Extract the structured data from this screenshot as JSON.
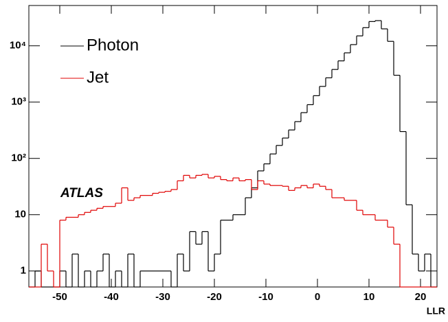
{
  "chart_data": {
    "type": "histogram",
    "annotation": "ATLAS",
    "x_label": "LLR",
    "bins": [
      -56,
      -54.8,
      -53.6,
      -52.4,
      -51.2,
      -50,
      -48.8,
      -47.6,
      -46.4,
      -45.2,
      -44,
      -42.8,
      -41.6,
      -40.4,
      -39.2,
      -38,
      -36.8,
      -35.6,
      -34.4,
      -33.2,
      -32,
      -30.8,
      -29.6,
      -28.4,
      -27.2,
      -26,
      -24.8,
      -23.6,
      -22.4,
      -21.2,
      -20,
      -18.8,
      -17.6,
      -16.4,
      -15.2,
      -14,
      -12.8,
      -11.6,
      -10.4,
      -9.2,
      -8,
      -6.8,
      -5.6,
      -4.4,
      -3.2,
      -2,
      -0.8,
      0.4,
      1.6,
      2.8,
      4,
      5.2,
      6.4,
      7.6,
      8.8,
      10,
      11.2,
      12.4,
      13.6,
      14.8,
      16,
      17.2,
      18.4,
      19.6,
      20.8,
      22,
      23.2
    ],
    "series": [
      {
        "name": "Photon",
        "color": "#000000",
        "values": [
          0,
          1,
          0,
          0,
          0,
          1,
          0,
          2,
          0,
          1,
          0,
          1,
          2,
          0,
          1,
          0,
          2,
          0,
          1,
          1,
          1,
          1,
          1,
          0,
          2,
          1,
          5,
          3,
          5,
          1,
          2,
          8,
          8,
          10,
          10,
          20,
          30,
          60,
          80,
          120,
          170,
          230,
          320,
          450,
          650,
          900,
          1300,
          1900,
          2700,
          3800,
          5400,
          7500,
          10500,
          15000,
          21000,
          27000,
          28000,
          20000,
          12000,
          3000,
          300,
          15,
          2,
          1,
          2,
          0
        ]
      },
      {
        "name": "Jet",
        "color": "#e00000",
        "values": [
          0,
          0,
          3,
          1,
          0,
          8,
          9,
          9,
          10,
          11,
          12,
          13,
          14,
          14,
          16,
          30,
          18,
          20,
          22,
          22,
          24,
          25,
          26,
          28,
          40,
          50,
          45,
          50,
          52,
          45,
          48,
          42,
          40,
          45,
          40,
          42,
          28,
          40,
          35,
          33,
          33,
          32,
          27,
          30,
          33,
          30,
          35,
          32,
          28,
          20,
          20,
          18,
          18,
          12,
          10,
          10,
          8,
          8,
          6,
          3,
          0,
          0,
          0,
          0,
          0,
          0
        ]
      }
    ],
    "xlim": [
      -56,
      23.2
    ],
    "xticks": [
      -50,
      -40,
      -30,
      -20,
      -10,
      0,
      10,
      20
    ],
    "ylim": [
      0.52,
      52000
    ],
    "log_y": true,
    "yticks": [
      1,
      10,
      {
        "value": 100,
        "label": "10²"
      },
      {
        "value": 1000,
        "label": "10³"
      },
      {
        "value": 10000,
        "label": "10⁴"
      }
    ]
  }
}
